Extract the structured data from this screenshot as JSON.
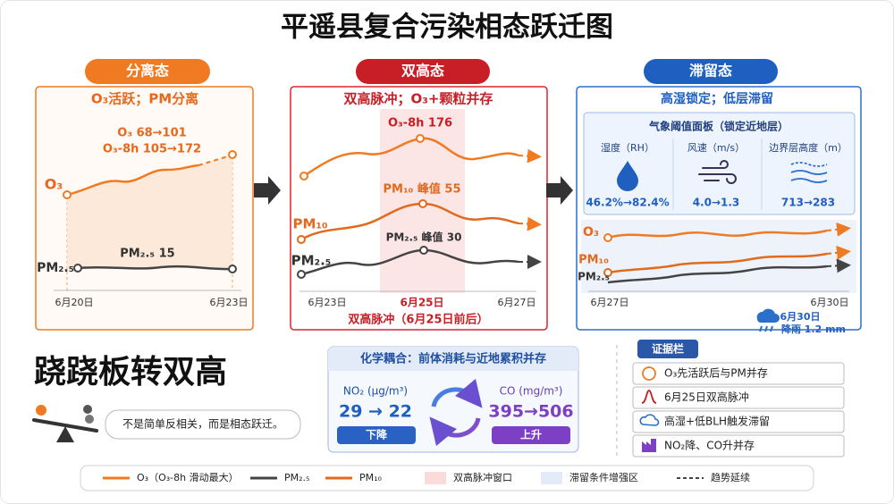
{
  "title": "平遥县复合污染相态跃迁图",
  "panels": [
    {
      "header": "分离态",
      "subtitle": "O₃活跃；PM分离",
      "annotations": [
        "O₃ 68→101",
        "O₃-8h 105→172",
        "PM₂.₅ 15"
      ],
      "series_labels": [
        "O₃",
        "PM₂.₅"
      ],
      "dates": [
        "6月20日",
        "6月23日"
      ]
    },
    {
      "header": "双高态",
      "subtitle": "双高脉冲；O₃+颗粒并存",
      "annotations": [
        "O₃-8h 176",
        "PM₁₀ 峰值 55",
        "PM₂.₅ 峰值 30"
      ],
      "series_labels": [
        "PM₁₀",
        "PM₂.₅"
      ],
      "dates": [
        "6月23日",
        "6月25日",
        "6月27日"
      ],
      "footer": "双高脉冲（6月25日前后）"
    },
    {
      "header": "滞留态",
      "subtitle": "高湿锁定；低层滞留",
      "panel_title": "气象阈值面板（锁定近地层）",
      "metrics": [
        {
          "label": "湿度（RH）",
          "value": "46.2%→82.4%"
        },
        {
          "label": "风速（m/s）",
          "value": "4.0→1.3"
        },
        {
          "label": "边界层高度（m）",
          "value": "713→283"
        }
      ],
      "series_labels": [
        "O₃",
        "PM₁₀",
        "PM₂.₅"
      ],
      "dates": [
        "6月27日",
        "6月30日"
      ],
      "note": {
        "date": "6月30日",
        "text": "降雨 1.2 mm"
      }
    }
  ],
  "summary": {
    "headline": "跷跷板转双高",
    "bubble": "不是简单反相关，而是相态跃迁。"
  },
  "chemistry": {
    "title": "化学耦合：前体消耗与近地累积并存",
    "items": [
      {
        "label": "NO₂ (μg/m³)",
        "value": "29 → 22",
        "trend": "下降"
      },
      {
        "label": "CO (mg/m³)",
        "value": "395→506",
        "trend": "上升"
      }
    ]
  },
  "evidence": {
    "title": "证据栏",
    "items": [
      "O₃先活跃后与PM并存",
      "6月25日双高脉冲",
      "高湿+低BLH触发滞留",
      "NO₂降、CO升并存"
    ]
  },
  "legend": [
    "O₃（O₃-8h 滑动最大）",
    "PM₂.₅",
    "PM₁₀",
    "双高脉冲窗口",
    "滞留条件增强区",
    "趋势延续"
  ]
}
